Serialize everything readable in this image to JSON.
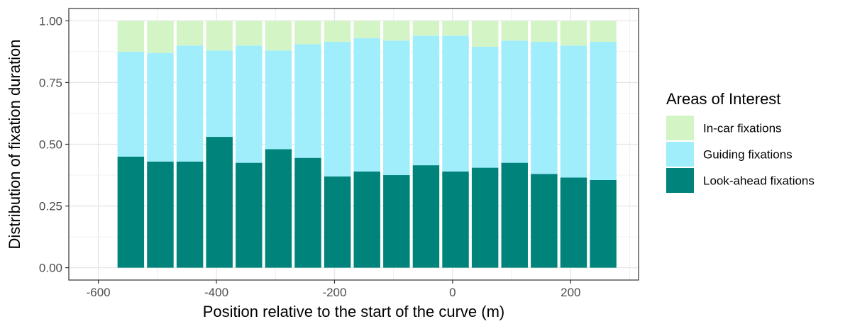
{
  "chart_data": {
    "type": "bar",
    "stacked": true,
    "xlabel": "Position relative to the start of the curve (m)",
    "ylabel": "Distribution of fixation duration",
    "xlim": [
      -650,
      315
    ],
    "ylim": [
      -0.05,
      1.05
    ],
    "x_ticks": [
      -600,
      -400,
      -200,
      0,
      200
    ],
    "x_tick_labels": [
      "-600",
      "-400",
      "-200",
      "0",
      "200"
    ],
    "y_ticks": [
      0,
      0.25,
      0.5,
      0.75,
      1.0
    ],
    "y_tick_labels": [
      "0.00",
      "0.25",
      "0.50",
      "0.75",
      "1.00"
    ],
    "grid": true,
    "legend_position": "right",
    "legend_title": "Areas of Interest",
    "x": [
      -545,
      -495,
      -445,
      -395,
      -345,
      -295,
      -245,
      -195,
      -145,
      -95,
      -45,
      5,
      55,
      105,
      155,
      205,
      255
    ],
    "bar_width": 45,
    "series": [
      {
        "name": "Look-ahead fixations",
        "color": "#00837b",
        "values": [
          0.45,
          0.43,
          0.43,
          0.53,
          0.425,
          0.48,
          0.445,
          0.37,
          0.39,
          0.375,
          0.415,
          0.39,
          0.405,
          0.425,
          0.38,
          0.365,
          0.355
        ]
      },
      {
        "name": "Guiding fixations",
        "color": "#a0edfc",
        "values": [
          0.425,
          0.44,
          0.47,
          0.35,
          0.475,
          0.4,
          0.46,
          0.545,
          0.54,
          0.545,
          0.525,
          0.55,
          0.49,
          0.495,
          0.535,
          0.535,
          0.56
        ]
      },
      {
        "name": "In-car fixations",
        "color": "#d3f5c6",
        "values": [
          0.125,
          0.13,
          0.1,
          0.12,
          0.1,
          0.12,
          0.095,
          0.085,
          0.07,
          0.08,
          0.06,
          0.06,
          0.105,
          0.08,
          0.085,
          0.1,
          0.085
        ]
      }
    ],
    "legend_order": [
      "In-car fixations",
      "Guiding fixations",
      "Look-ahead fixations"
    ]
  }
}
